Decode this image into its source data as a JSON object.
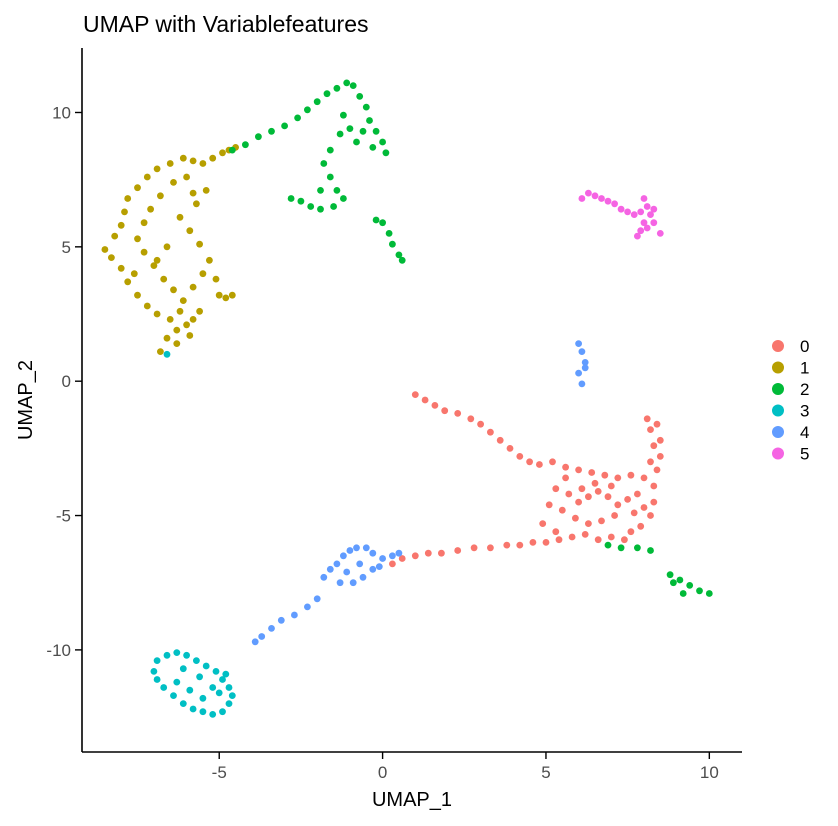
{
  "chart_data": {
    "type": "scatter",
    "title": "UMAP with Variablefeatures",
    "xlabel": "UMAP_1",
    "ylabel": "UMAP_2",
    "xlim": [
      -9.2,
      11.0
    ],
    "ylim": [
      -13.8,
      12.4
    ],
    "x_ticks": [
      -5,
      0,
      5,
      10
    ],
    "y_ticks": [
      -10,
      -5,
      0,
      5,
      10
    ],
    "x_tick_labels": [
      "-5",
      "0",
      "5",
      "10"
    ],
    "y_tick_labels": [
      "-10",
      "-5",
      "0",
      "5",
      "10"
    ],
    "grid": false,
    "legend": {
      "position": "right",
      "entries": [
        "0",
        "1",
        "2",
        "3",
        "4",
        "5"
      ]
    },
    "series": [
      {
        "name": "0",
        "color": "#F8766D",
        "points": [
          [
            1.0,
            -0.5
          ],
          [
            1.3,
            -0.7
          ],
          [
            1.6,
            -0.9
          ],
          [
            1.9,
            -1.1
          ],
          [
            2.3,
            -1.2
          ],
          [
            2.7,
            -1.4
          ],
          [
            3.0,
            -1.6
          ],
          [
            3.3,
            -1.9
          ],
          [
            3.6,
            -2.2
          ],
          [
            3.9,
            -2.5
          ],
          [
            4.2,
            -2.8
          ],
          [
            4.5,
            -3.0
          ],
          [
            4.8,
            -3.1
          ],
          [
            5.2,
            -3.0
          ],
          [
            5.6,
            -3.2
          ],
          [
            6.0,
            -3.3
          ],
          [
            6.4,
            -3.4
          ],
          [
            6.8,
            -3.5
          ],
          [
            7.2,
            -3.6
          ],
          [
            7.6,
            -3.5
          ],
          [
            8.0,
            -3.6
          ],
          [
            8.2,
            -3.0
          ],
          [
            8.3,
            -2.4
          ],
          [
            8.2,
            -1.8
          ],
          [
            8.1,
            -1.4
          ],
          [
            8.4,
            -1.6
          ],
          [
            8.5,
            -2.2
          ],
          [
            8.5,
            -2.8
          ],
          [
            8.4,
            -3.3
          ],
          [
            8.3,
            -3.9
          ],
          [
            8.3,
            -4.5
          ],
          [
            8.2,
            -5.0
          ],
          [
            7.9,
            -5.4
          ],
          [
            7.6,
            -5.6
          ],
          [
            7.4,
            -5.9
          ],
          [
            7.0,
            -5.8
          ],
          [
            6.6,
            -5.9
          ],
          [
            6.2,
            -5.7
          ],
          [
            5.8,
            -5.8
          ],
          [
            5.4,
            -5.9
          ],
          [
            5.0,
            -6.0
          ],
          [
            4.6,
            -6.0
          ],
          [
            4.2,
            -6.1
          ],
          [
            3.8,
            -6.1
          ],
          [
            3.3,
            -6.2
          ],
          [
            2.8,
            -6.2
          ],
          [
            2.3,
            -6.3
          ],
          [
            1.8,
            -6.4
          ],
          [
            1.4,
            -6.4
          ],
          [
            1.0,
            -6.5
          ],
          [
            0.6,
            -6.6
          ],
          [
            0.3,
            -6.8
          ],
          [
            5.3,
            -4.0
          ],
          [
            5.7,
            -4.2
          ],
          [
            6.0,
            -4.5
          ],
          [
            6.3,
            -4.3
          ],
          [
            6.6,
            -4.1
          ],
          [
            6.9,
            -4.3
          ],
          [
            7.2,
            -4.6
          ],
          [
            7.5,
            -4.4
          ],
          [
            7.8,
            -4.2
          ],
          [
            7.1,
            -5.0
          ],
          [
            6.7,
            -5.2
          ],
          [
            6.3,
            -5.3
          ],
          [
            5.9,
            -5.1
          ],
          [
            5.5,
            -4.8
          ],
          [
            5.1,
            -4.6
          ],
          [
            4.9,
            -5.3
          ],
          [
            5.3,
            -5.6
          ],
          [
            6.5,
            -3.8
          ],
          [
            7.0,
            -3.9
          ],
          [
            7.7,
            -4.9
          ],
          [
            8.0,
            -4.7
          ],
          [
            6.1,
            -4.0
          ],
          [
            5.6,
            -3.6
          ]
        ]
      },
      {
        "name": "1",
        "color": "#B79F00",
        "points": [
          [
            -6.8,
            1.1
          ],
          [
            -6.6,
            1.6
          ],
          [
            -6.3,
            1.9
          ],
          [
            -6.0,
            2.1
          ],
          [
            -5.8,
            2.3
          ],
          [
            -6.2,
            2.6
          ],
          [
            -6.5,
            2.3
          ],
          [
            -6.9,
            2.5
          ],
          [
            -7.2,
            2.8
          ],
          [
            -7.5,
            3.2
          ],
          [
            -7.8,
            3.7
          ],
          [
            -8.0,
            4.2
          ],
          [
            -8.3,
            4.6
          ],
          [
            -8.5,
            4.9
          ],
          [
            -8.2,
            5.4
          ],
          [
            -8.0,
            5.8
          ],
          [
            -7.9,
            6.3
          ],
          [
            -7.8,
            6.8
          ],
          [
            -7.5,
            7.2
          ],
          [
            -7.2,
            7.6
          ],
          [
            -6.9,
            7.9
          ],
          [
            -6.5,
            8.1
          ],
          [
            -6.1,
            8.3
          ],
          [
            -5.8,
            8.2
          ],
          [
            -5.5,
            8.1
          ],
          [
            -5.2,
            8.3
          ],
          [
            -4.9,
            8.5
          ],
          [
            -4.7,
            8.6
          ],
          [
            -4.5,
            8.7
          ],
          [
            -6.4,
            7.4
          ],
          [
            -6.8,
            6.9
          ],
          [
            -7.1,
            6.4
          ],
          [
            -7.3,
            5.9
          ],
          [
            -7.5,
            5.3
          ],
          [
            -7.3,
            4.8
          ],
          [
            -7.0,
            4.3
          ],
          [
            -6.7,
            3.8
          ],
          [
            -6.4,
            3.4
          ],
          [
            -6.1,
            3.0
          ],
          [
            -5.8,
            3.5
          ],
          [
            -5.5,
            4.0
          ],
          [
            -5.3,
            4.5
          ],
          [
            -5.1,
            3.8
          ],
          [
            -5.0,
            3.2
          ],
          [
            -4.8,
            3.1
          ],
          [
            -4.6,
            3.2
          ],
          [
            -5.6,
            5.1
          ],
          [
            -5.9,
            5.6
          ],
          [
            -6.2,
            6.1
          ],
          [
            -5.7,
            6.6
          ],
          [
            -5.4,
            7.1
          ],
          [
            -6.0,
            7.6
          ],
          [
            -5.8,
            7.0
          ],
          [
            -6.6,
            5.0
          ],
          [
            -6.9,
            4.5
          ],
          [
            -7.6,
            4.0
          ],
          [
            -5.6,
            2.6
          ],
          [
            -6.3,
            1.4
          ],
          [
            -5.9,
            1.7
          ]
        ]
      },
      {
        "name": "2",
        "color": "#00BA38",
        "points": [
          [
            -4.6,
            8.6
          ],
          [
            -4.2,
            8.8
          ],
          [
            -3.8,
            9.1
          ],
          [
            -3.4,
            9.3
          ],
          [
            -3.0,
            9.5
          ],
          [
            -2.6,
            9.8
          ],
          [
            -2.3,
            10.1
          ],
          [
            -2.0,
            10.4
          ],
          [
            -1.7,
            10.7
          ],
          [
            -1.4,
            10.9
          ],
          [
            -1.1,
            11.1
          ],
          [
            -0.9,
            11.0
          ],
          [
            -0.7,
            10.6
          ],
          [
            -0.5,
            10.2
          ],
          [
            -0.4,
            9.7
          ],
          [
            -0.6,
            9.3
          ],
          [
            -0.8,
            8.9
          ],
          [
            -1.0,
            9.4
          ],
          [
            -1.2,
            9.9
          ],
          [
            -1.3,
            9.2
          ],
          [
            -1.6,
            8.6
          ],
          [
            -1.8,
            8.1
          ],
          [
            -1.6,
            7.6
          ],
          [
            -1.4,
            7.1
          ],
          [
            -1.2,
            6.8
          ],
          [
            -1.5,
            6.5
          ],
          [
            -1.9,
            6.4
          ],
          [
            -2.2,
            6.5
          ],
          [
            -2.5,
            6.7
          ],
          [
            -2.8,
            6.8
          ],
          [
            -0.2,
            9.3
          ],
          [
            0.0,
            8.9
          ],
          [
            0.1,
            8.5
          ],
          [
            -0.3,
            8.7
          ],
          [
            -1.9,
            7.1
          ],
          [
            -0.2,
            6.0
          ],
          [
            0.0,
            5.9
          ],
          [
            0.2,
            5.5
          ],
          [
            0.3,
            5.1
          ],
          [
            0.5,
            4.7
          ],
          [
            0.6,
            4.5
          ],
          [
            8.8,
            -7.2
          ],
          [
            9.1,
            -7.4
          ],
          [
            9.4,
            -7.6
          ],
          [
            9.7,
            -7.8
          ],
          [
            10.0,
            -7.9
          ],
          [
            9.2,
            -7.9
          ],
          [
            8.9,
            -7.5
          ],
          [
            6.9,
            -6.1
          ],
          [
            7.3,
            -6.2
          ],
          [
            7.8,
            -6.2
          ],
          [
            8.2,
            -6.3
          ]
        ]
      },
      {
        "name": "3",
        "color": "#00BFC4",
        "points": [
          [
            -6.6,
            1.0
          ],
          [
            -6.9,
            -10.4
          ],
          [
            -6.6,
            -10.2
          ],
          [
            -6.3,
            -10.1
          ],
          [
            -6.0,
            -10.2
          ],
          [
            -5.7,
            -10.4
          ],
          [
            -5.4,
            -10.6
          ],
          [
            -5.1,
            -10.8
          ],
          [
            -4.9,
            -11.1
          ],
          [
            -4.7,
            -11.4
          ],
          [
            -4.6,
            -11.7
          ],
          [
            -4.7,
            -12.0
          ],
          [
            -4.9,
            -12.3
          ],
          [
            -5.2,
            -12.4
          ],
          [
            -5.5,
            -12.3
          ],
          [
            -5.8,
            -12.2
          ],
          [
            -6.1,
            -12.0
          ],
          [
            -6.4,
            -11.7
          ],
          [
            -6.7,
            -11.4
          ],
          [
            -6.9,
            -11.1
          ],
          [
            -7.0,
            -10.8
          ],
          [
            -6.3,
            -11.2
          ],
          [
            -5.9,
            -11.5
          ],
          [
            -5.5,
            -11.8
          ],
          [
            -5.2,
            -11.4
          ],
          [
            -5.6,
            -11.0
          ],
          [
            -6.1,
            -10.7
          ],
          [
            -5.0,
            -11.6
          ],
          [
            -4.8,
            -10.9
          ]
        ]
      },
      {
        "name": "4",
        "color": "#619CFF",
        "points": [
          [
            6.0,
            1.4
          ],
          [
            6.1,
            1.1
          ],
          [
            6.2,
            0.7
          ],
          [
            6.0,
            0.3
          ],
          [
            6.1,
            -0.1
          ],
          [
            6.2,
            0.5
          ],
          [
            -1.8,
            -7.3
          ],
          [
            -1.6,
            -7.0
          ],
          [
            -1.4,
            -6.8
          ],
          [
            -1.2,
            -6.5
          ],
          [
            -1.0,
            -6.3
          ],
          [
            -0.8,
            -6.2
          ],
          [
            -0.5,
            -6.2
          ],
          [
            -0.3,
            -6.4
          ],
          [
            0.0,
            -6.6
          ],
          [
            0.3,
            -6.5
          ],
          [
            0.5,
            -6.4
          ],
          [
            -0.6,
            -7.3
          ],
          [
            -0.9,
            -7.5
          ],
          [
            -1.1,
            -7.1
          ],
          [
            -1.3,
            -7.5
          ],
          [
            -0.7,
            -6.8
          ],
          [
            -0.3,
            -7.0
          ],
          [
            -2.3,
            -8.4
          ],
          [
            -2.7,
            -8.7
          ],
          [
            -3.1,
            -8.9
          ],
          [
            -3.4,
            -9.2
          ],
          [
            -3.7,
            -9.5
          ],
          [
            -3.9,
            -9.7
          ],
          [
            -2.0,
            -8.1
          ],
          [
            -0.1,
            -6.9
          ]
        ]
      },
      {
        "name": "5",
        "color": "#F564E3",
        "points": [
          [
            6.1,
            6.8
          ],
          [
            6.3,
            7.0
          ],
          [
            6.5,
            6.9
          ],
          [
            6.7,
            6.8
          ],
          [
            6.9,
            6.7
          ],
          [
            7.1,
            6.6
          ],
          [
            7.3,
            6.4
          ],
          [
            7.5,
            6.3
          ],
          [
            7.7,
            6.2
          ],
          [
            7.9,
            6.3
          ],
          [
            8.1,
            6.5
          ],
          [
            8.2,
            6.2
          ],
          [
            8.3,
            5.9
          ],
          [
            8.1,
            5.7
          ],
          [
            7.9,
            5.6
          ],
          [
            7.8,
            5.4
          ],
          [
            8.0,
            5.9
          ],
          [
            8.3,
            6.4
          ],
          [
            8.0,
            6.8
          ],
          [
            8.5,
            5.5
          ]
        ]
      }
    ]
  }
}
